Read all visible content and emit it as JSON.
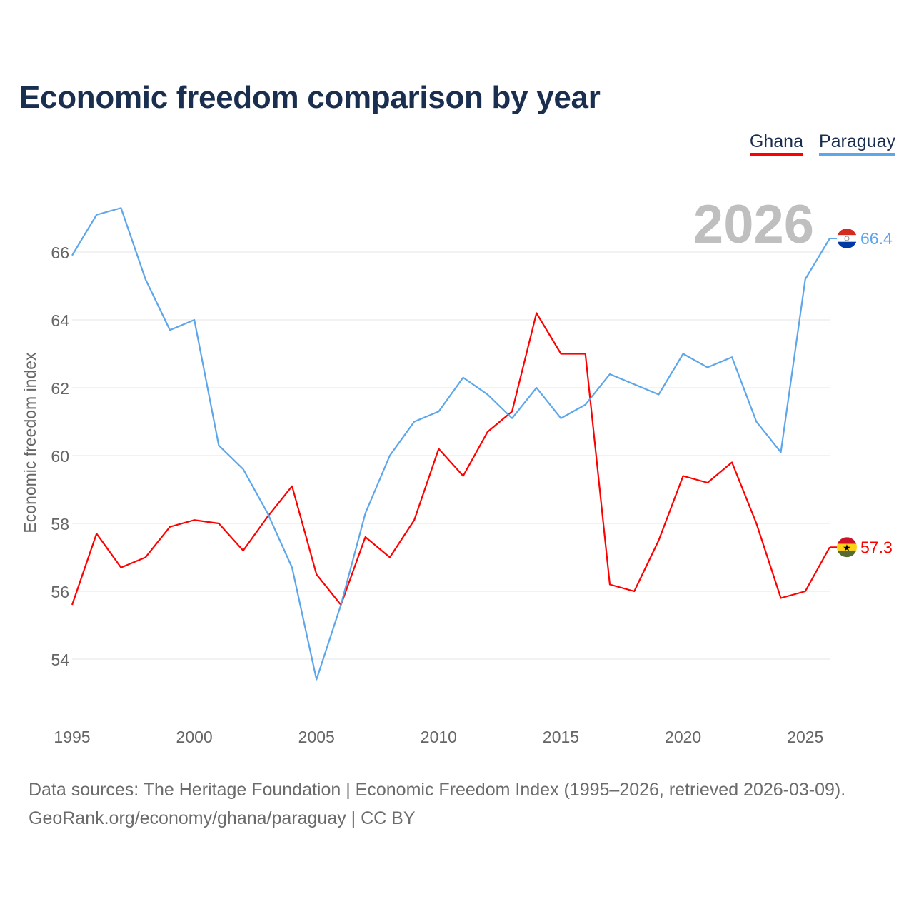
{
  "title": "Economic freedom comparison by year",
  "source_line1": "Data sources: The Heritage Foundation | Economic Freedom Index (1995–2026, retrieved 2026-03-09).",
  "source_line2": "GeoRank.org/economy/ghana/paraguay | CC BY",
  "chart_data": {
    "type": "line",
    "title": "Economic freedom comparison by year",
    "ylabel": "Economic freedom index",
    "xlabel": "",
    "year_label": "2026",
    "x": [
      1995,
      1996,
      1997,
      1998,
      1999,
      2000,
      2001,
      2002,
      2003,
      2004,
      2005,
      2006,
      2007,
      2008,
      2009,
      2010,
      2011,
      2012,
      2013,
      2014,
      2015,
      2016,
      2017,
      2018,
      2019,
      2020,
      2021,
      2022,
      2023,
      2024,
      2025,
      2026
    ],
    "xticks": [
      1995,
      2000,
      2005,
      2010,
      2015,
      2020,
      2025
    ],
    "yticks": [
      54,
      56,
      58,
      60,
      62,
      64,
      66
    ],
    "xlim": [
      1995,
      2026
    ],
    "ylim": [
      52.5,
      67.8
    ],
    "grid": true,
    "legend_position": "top-right",
    "series": [
      {
        "name": "Ghana",
        "color": "#ff0000",
        "end_label": "57.3",
        "values": [
          55.6,
          57.7,
          56.7,
          57.0,
          57.9,
          58.1,
          58.0,
          57.2,
          58.2,
          59.1,
          56.5,
          55.6,
          57.6,
          57.0,
          58.1,
          60.2,
          59.4,
          60.7,
          61.3,
          64.2,
          63.0,
          63.0,
          56.2,
          56.0,
          57.5,
          59.4,
          59.2,
          59.8,
          58.0,
          55.8,
          56.0,
          57.3
        ]
      },
      {
        "name": "Paraguay",
        "color": "#5ea6ea",
        "end_label": "66.4",
        "values": [
          65.9,
          67.1,
          67.3,
          65.2,
          63.7,
          64.0,
          60.3,
          59.6,
          58.3,
          56.7,
          53.4,
          55.6,
          58.3,
          60.0,
          61.0,
          61.3,
          62.3,
          61.8,
          61.1,
          62.0,
          61.1,
          61.5,
          62.4,
          62.1,
          61.8,
          63.0,
          62.6,
          62.9,
          61.0,
          60.1,
          65.2,
          66.4
        ]
      }
    ]
  }
}
